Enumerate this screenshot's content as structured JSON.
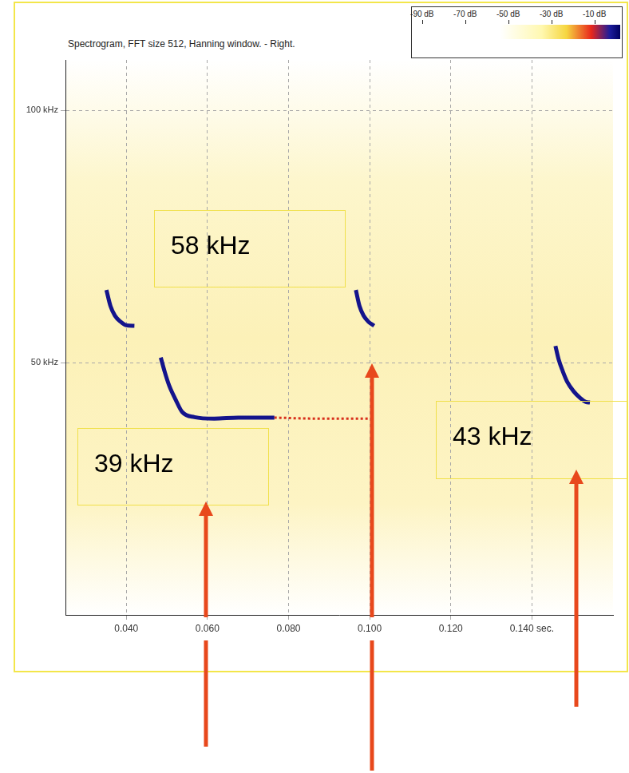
{
  "chart_data": {
    "type": "line",
    "title": "Spectrogram, FFT size 512, Hanning window. - Right.",
    "xlim": [
      0.025,
      0.16
    ],
    "xticks": [
      {
        "value": 0.04,
        "label": "0.040"
      },
      {
        "value": 0.06,
        "label": "0.060"
      },
      {
        "value": 0.08,
        "label": "0.080"
      },
      {
        "value": 0.1,
        "label": "0.100"
      },
      {
        "value": 0.12,
        "label": "0.120"
      },
      {
        "value": 0.14,
        "label": "0.140 sec."
      }
    ],
    "ylim": [
      0,
      110
    ],
    "yticks": [
      {
        "value": 50,
        "label": "50 kHz"
      },
      {
        "value": 100,
        "label": "100 kHz"
      }
    ],
    "grid": true,
    "series": [
      {
        "color": "#14148c",
        "line_style": "solid",
        "x": [
          0.0351,
          0.0361,
          0.0372,
          0.0386,
          0.04,
          0.042
        ],
        "values": [
          64.4,
          61.2,
          59.3,
          58.1,
          57.4,
          57.3
        ]
      },
      {
        "color": "#14148c",
        "line_style": "solid",
        "x": [
          0.0485,
          0.0495,
          0.0506,
          0.0522,
          0.0538,
          0.0568,
          0.0617,
          0.0676,
          0.0765
        ],
        "values": [
          51.0,
          48.1,
          45.4,
          42.6,
          40.2,
          39.2,
          38.9,
          39.1,
          39.1
        ]
      },
      {
        "color": "#d8301c",
        "line_style": "dotted",
        "x": [
          0.0765,
          0.0873,
          0.1001
        ],
        "values": [
          39.1,
          38.9,
          38.9
        ]
      },
      {
        "color": "#14148c",
        "line_style": "solid",
        "x": [
          0.0966,
          0.0975,
          0.0985,
          0.0997,
          0.1011
        ],
        "values": [
          64.4,
          61.2,
          59.3,
          58.1,
          57.3
        ]
      },
      {
        "color": "#14148c",
        "line_style": "solid",
        "x": [
          0.1458,
          0.1466,
          0.1476,
          0.1487,
          0.1503,
          0.1519,
          0.1533,
          0.1543
        ],
        "values": [
          53.3,
          50.6,
          48.3,
          46.2,
          44.3,
          43.0,
          42.2,
          42.1
        ]
      }
    ],
    "annotations": [
      "58 kHz",
      "39 kHz",
      "43 kHz"
    ],
    "colorbar": {
      "range": [
        -94,
        2
      ],
      "ticks": [
        {
          "value": -90,
          "label": "-90 dB"
        },
        {
          "value": -70,
          "label": "-70 dB"
        },
        {
          "value": -50,
          "label": "-50 dB"
        },
        {
          "value": -30,
          "label": "-30 dB"
        },
        {
          "value": -10,
          "label": "-10 dB"
        }
      ]
    }
  }
}
